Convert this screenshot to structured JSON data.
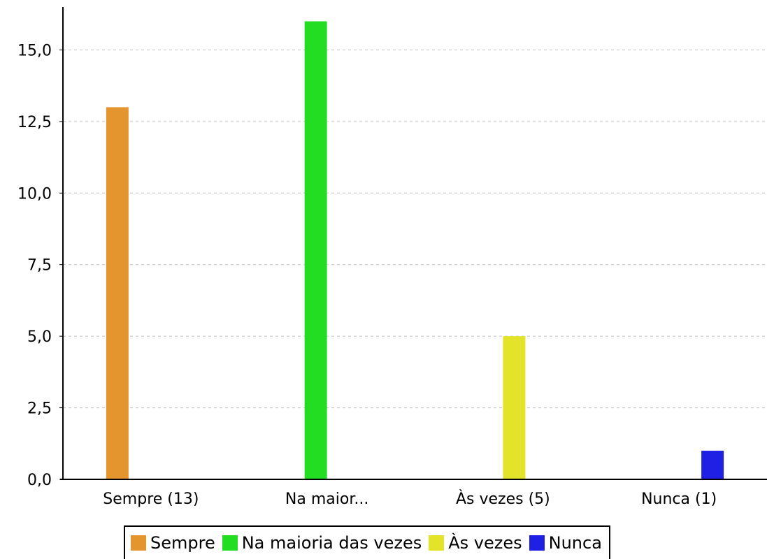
{
  "chart_data": {
    "type": "bar",
    "title": "",
    "xlabel": "",
    "ylabel": "",
    "categories": [
      "Sempre (13)",
      "Na maior...",
      "Às vezes (5)",
      "Nunca (1)"
    ],
    "ylim": [
      0,
      16.5
    ],
    "yticks": [
      "0,0",
      "2,5",
      "5,0",
      "7,5",
      "10,0",
      "12,5",
      "15,0"
    ],
    "ytick_values": [
      0,
      2.5,
      5,
      7.5,
      10,
      12.5,
      15
    ],
    "grid": true,
    "legend_position": "bottom",
    "series": [
      {
        "name": "Sempre",
        "color": "#E5952E",
        "values": [
          13,
          0,
          0,
          0
        ]
      },
      {
        "name": "Na maioria das vezes",
        "color": "#22DD22",
        "values": [
          0,
          16,
          0,
          0
        ]
      },
      {
        "name": "Às vezes",
        "color": "#E3E32A",
        "values": [
          0,
          0,
          5,
          0
        ]
      },
      {
        "name": "Nunca",
        "color": "#2020E5",
        "values": [
          0,
          0,
          0,
          1
        ]
      }
    ]
  }
}
